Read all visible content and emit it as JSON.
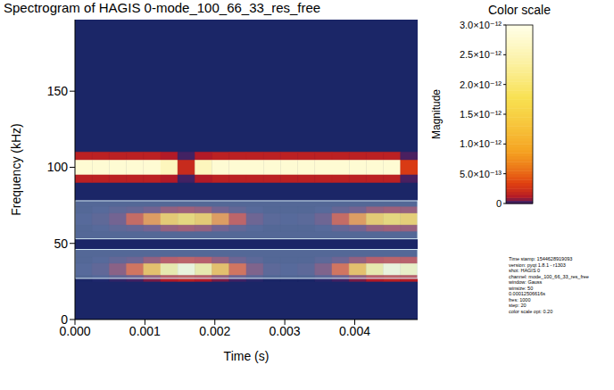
{
  "chart_data": {
    "type": "heatmap",
    "title": "Spectrogram of HAGIS 0-mode_100_66_33_res_free",
    "x_label": "Time (s)",
    "y_label": "Frequency (kHz)",
    "xlim": [
      0,
      0.0049
    ],
    "xticks": [
      {
        "value": 0,
        "label": "0.000"
      },
      {
        "value": 0.001,
        "label": "0.001"
      },
      {
        "value": 0.002,
        "label": "0.002"
      },
      {
        "value": 0.003,
        "label": "0.003"
      },
      {
        "value": 0.004,
        "label": "0.004"
      }
    ],
    "ylim": [
      0,
      197
    ],
    "yticks": [
      0,
      50,
      100,
      150
    ],
    "cells": {
      "x_edges": [
        0,
        0.000245,
        0.00049,
        0.000735,
        0.00098,
        0.001225,
        0.00147,
        0.001715,
        0.00196,
        0.002205,
        0.00245,
        0.002695,
        0.00294,
        0.003185,
        0.00343,
        0.003675,
        0.00392,
        0.004165,
        0.00441,
        0.004655,
        0.0049
      ],
      "background": 1e-15,
      "rows": [
        {
          "f0": 95,
          "f1": 105,
          "values": [
            2.8e-12,
            2.8e-12,
            2.8e-12,
            2.8e-12,
            2.8e-12,
            2.6e-12,
            2e-13,
            2.6e-12,
            2.8e-12,
            2.8e-12,
            2.8e-12,
            2.8e-12,
            2.8e-12,
            2.8e-12,
            2.8e-12,
            2.8e-12,
            2.8e-12,
            2.8e-12,
            2.8e-12,
            3e-13
          ]
        },
        {
          "f0": 90,
          "f1": 95,
          "values": [
            1.5e-13,
            1.5e-13,
            1.5e-13,
            1.5e-13,
            1.5e-13,
            1.2e-13,
            2e-14,
            1.2e-13,
            1.5e-13,
            1.5e-13,
            1.5e-13,
            1.5e-13,
            1.5e-13,
            1.5e-13,
            1.5e-13,
            1.5e-13,
            1.5e-13,
            1.5e-13,
            1.5e-13,
            3e-14
          ]
        },
        {
          "f0": 105,
          "f1": 110,
          "values": [
            1.5e-13,
            1.5e-13,
            1.5e-13,
            1.5e-13,
            1.5e-13,
            1.2e-13,
            2e-14,
            1.2e-13,
            1.5e-13,
            1.5e-13,
            1.5e-13,
            1.5e-13,
            1.5e-13,
            1.5e-13,
            1.5e-13,
            1.5e-13,
            1.5e-13,
            1.5e-13,
            1.5e-13,
            3e-14
          ]
        },
        {
          "f0": 62,
          "f1": 70,
          "values": [
            2e-15,
            5e-15,
            3e-14,
            2e-13,
            6e-13,
            1.2e-12,
            1.5e-12,
            1.2e-12,
            6e-13,
            1.5e-13,
            2e-14,
            3e-15,
            2e-15,
            3e-15,
            2e-14,
            2e-13,
            6e-13,
            1.2e-12,
            1.5e-12,
            1.3e-12
          ]
        },
        {
          "f0": 58,
          "f1": 62,
          "values": [
            1e-15,
            2e-15,
            5e-15,
            1e-14,
            3e-14,
            6e-14,
            7.5e-14,
            6e-14,
            3e-14,
            8e-15,
            2e-15,
            1e-15,
            1e-15,
            1e-15,
            2e-15,
            1e-14,
            3e-14,
            6e-14,
            7.5e-14,
            6.5e-14
          ]
        },
        {
          "f0": 70,
          "f1": 74,
          "values": [
            1e-15,
            2e-15,
            5e-15,
            1e-14,
            3e-14,
            6e-14,
            7.5e-14,
            6e-14,
            3e-14,
            8e-15,
            2e-15,
            1e-15,
            1e-15,
            1e-15,
            2e-15,
            1e-14,
            3e-14,
            6e-14,
            7.5e-14,
            6.5e-14
          ]
        },
        {
          "f0": 29,
          "f1": 37,
          "values": [
            2e-15,
            6e-15,
            5e-14,
            3e-13,
            1e-12,
            2.2e-12,
            2.8e-12,
            2.2e-12,
            1e-12,
            3e-13,
            4e-14,
            4e-15,
            2e-15,
            4e-15,
            4e-14,
            3e-13,
            1e-12,
            2.2e-12,
            2.8e-12,
            2.5e-12
          ]
        },
        {
          "f0": 25,
          "f1": 29,
          "values": [
            1e-15,
            2e-15,
            8e-15,
            2e-14,
            6e-14,
            1.2e-13,
            1.5e-13,
            1.2e-13,
            6e-14,
            2e-14,
            4e-15,
            1e-15,
            1e-15,
            1e-15,
            4e-15,
            2e-14,
            6e-14,
            1.2e-13,
            1.5e-13,
            1.3e-13
          ]
        },
        {
          "f0": 37,
          "f1": 41,
          "values": [
            1e-15,
            2e-15,
            8e-15,
            2e-14,
            6e-14,
            1.2e-13,
            1.5e-13,
            1.2e-13,
            6e-14,
            2e-14,
            4e-15,
            1e-15,
            1e-15,
            1e-15,
            4e-15,
            2e-14,
            6e-14,
            1.2e-13,
            1.5e-13,
            1.3e-13
          ]
        }
      ]
    },
    "highlights": [
      {
        "ylim": [
          53,
          78
        ]
      },
      {
        "ylim": [
          27,
          46
        ]
      }
    ],
    "colorbar": {
      "title": "Color scale",
      "label": "Magnitude",
      "range": [
        0,
        3e-12
      ],
      "power": 0.2,
      "ticks": [
        0,
        {
          "value": 5e-13,
          "label": "5.0×10⁻¹³"
        },
        {
          "value": 1e-12,
          "label": "1.0×10⁻¹²"
        },
        {
          "value": 1.5e-12,
          "label": "1.5×10⁻¹²"
        },
        {
          "value": 2e-12,
          "label": "2.0×10⁻¹²"
        },
        {
          "value": 2.5e-12,
          "label": "2.5×10⁻¹²"
        },
        {
          "value": 3e-12,
          "label": "3.0×10⁻¹²"
        }
      ]
    },
    "info": [
      "Time stamp: 1544628919093",
      "version: pyqt 1.8.1 - r1303",
      "shot: HAGIS 0",
      "channel: mode_100_66_33_res_free",
      "window: Gauss",
      "winsize: 50",
      "0.00012506616s",
      "fres: 1000",
      "step: 20",
      "color scale opt: 0.20"
    ]
  }
}
